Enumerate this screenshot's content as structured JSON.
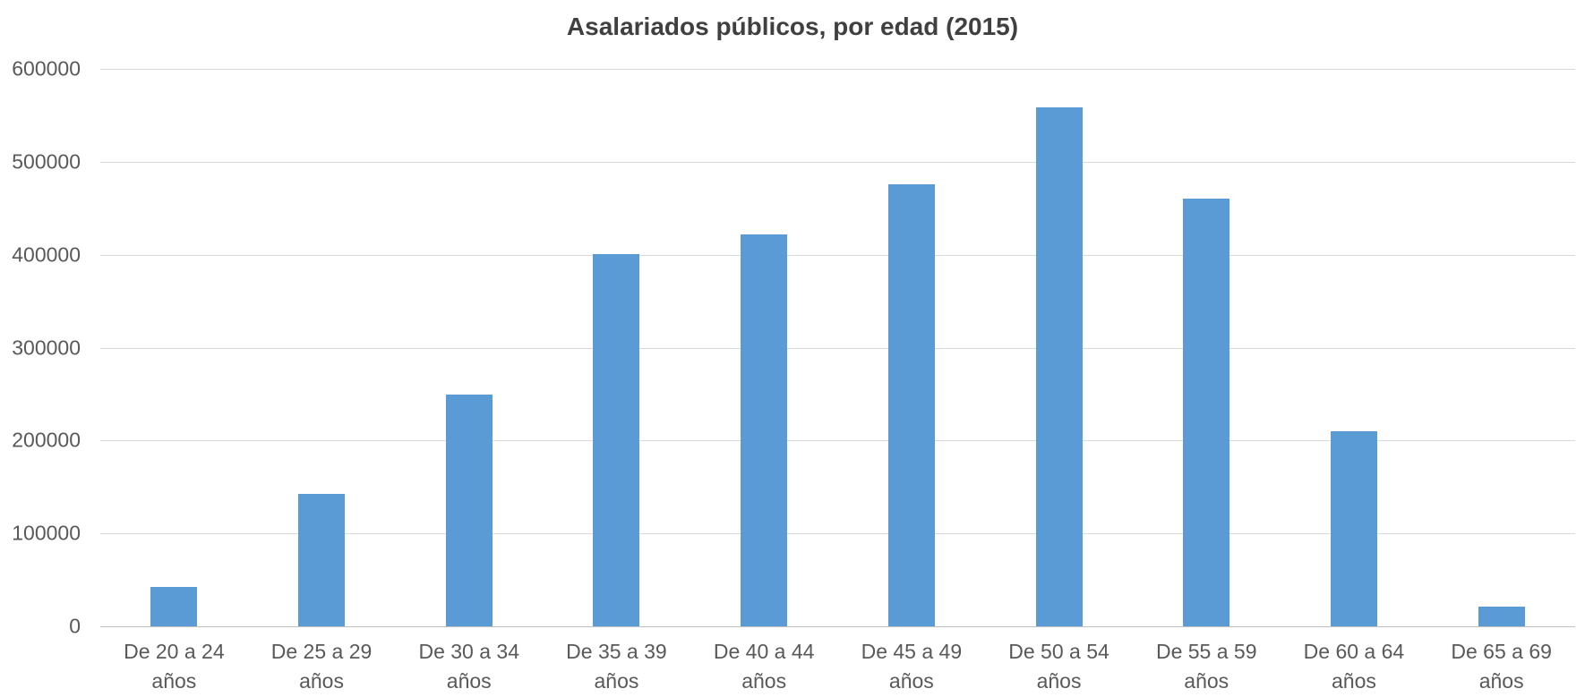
{
  "chart_data": {
    "type": "bar",
    "title": "Asalariados públicos, por edad (2015)",
    "categories": [
      "De 20 a 24 años",
      "De 25 a 29 años",
      "De 30 a 34 años",
      "De 35 a 39 años",
      "De 40 a 44 años",
      "De 45 a 49 años",
      "De 50 a 54 años",
      "De 55 a 59 años",
      "De 60 a 64 años",
      "De 65 a 69 años"
    ],
    "values": [
      42000,
      143000,
      249000,
      401000,
      422000,
      476000,
      559000,
      460000,
      210000,
      21000
    ],
    "xlabel": "",
    "ylabel": "",
    "ylim": [
      0,
      600000
    ],
    "ytick_step": 100000,
    "ytick_labels": [
      "0",
      "100000",
      "200000",
      "300000",
      "400000",
      "500000",
      "600000"
    ],
    "bar_color": "#5b9bd5",
    "grid": true,
    "legend": "none",
    "text_color": "#595959",
    "gridline_color": "#d9d9d9"
  }
}
